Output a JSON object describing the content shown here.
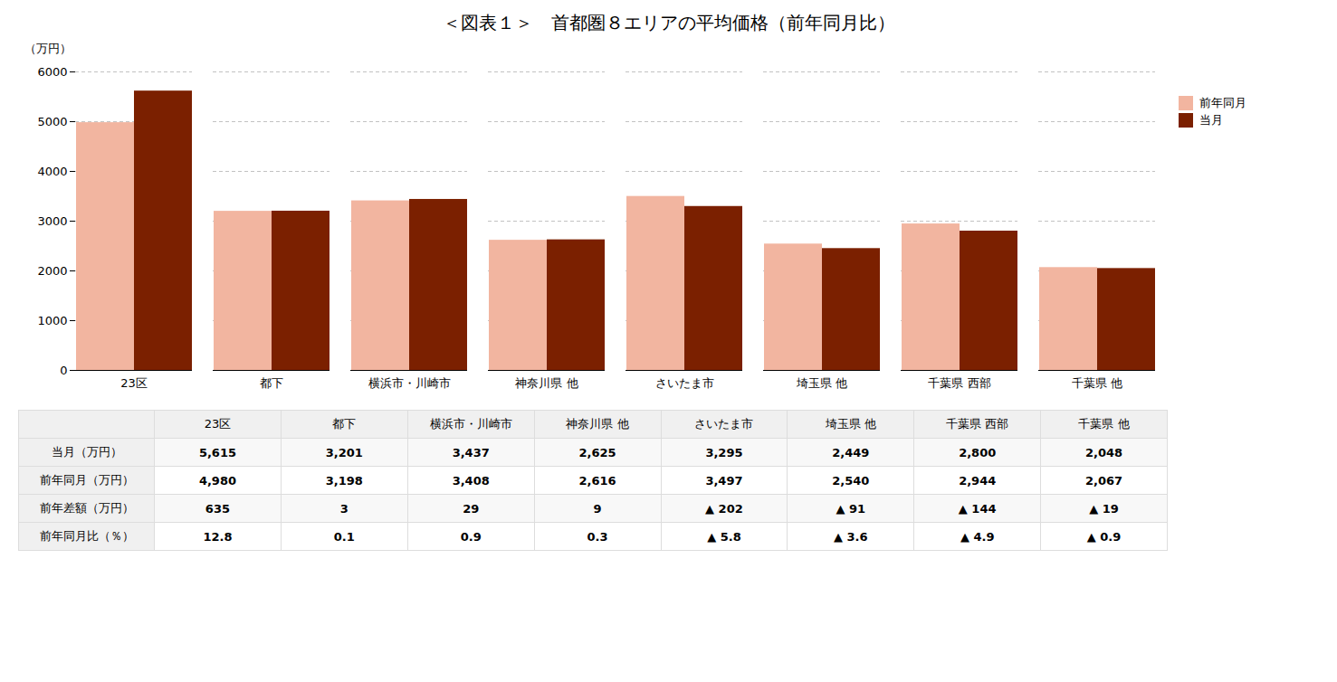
{
  "chart_data": {
    "type": "bar",
    "title": "＜図表１＞　首都圏８エリアの平均価格（前年同月比）",
    "ylabel": "（万円）",
    "categories": [
      "23区",
      "都下",
      "横浜市・川崎市",
      "神奈川県 他",
      "さいたま市",
      "埼玉県 他",
      "千葉県 西部",
      "千葉県 他"
    ],
    "series": [
      {
        "name": "前年同月",
        "color": "#F2B5A0",
        "values": [
          4980,
          3198,
          3408,
          2616,
          3497,
          2540,
          2944,
          2067
        ]
      },
      {
        "name": "当月",
        "color": "#7B2000",
        "values": [
          5615,
          3201,
          3437,
          2625,
          3295,
          2449,
          2800,
          2048
        ]
      }
    ],
    "ylim": [
      0,
      6000
    ],
    "yticks": [
      0,
      1000,
      2000,
      3000,
      4000,
      5000,
      6000
    ],
    "grid": true,
    "legend": "right",
    "table": {
      "row_labels": [
        "当月（万円）",
        "前年同月（万円）",
        "前年差額（万円）",
        "前年同月比（％）"
      ],
      "rows": [
        [
          "5,615",
          "3,201",
          "3,437",
          "2,625",
          "3,295",
          "2,449",
          "2,800",
          "2,048"
        ],
        [
          "4,980",
          "3,198",
          "3,408",
          "2,616",
          "3,497",
          "2,540",
          "2,944",
          "2,067"
        ],
        [
          "635",
          "3",
          "29",
          "9",
          "▲ 202",
          "▲ 91",
          "▲ 144",
          "▲ 19"
        ],
        [
          "12.8",
          "0.1",
          "0.9",
          "0.3",
          "▲ 5.8",
          "▲ 3.6",
          "▲ 4.9",
          "▲ 0.9"
        ]
      ]
    }
  }
}
